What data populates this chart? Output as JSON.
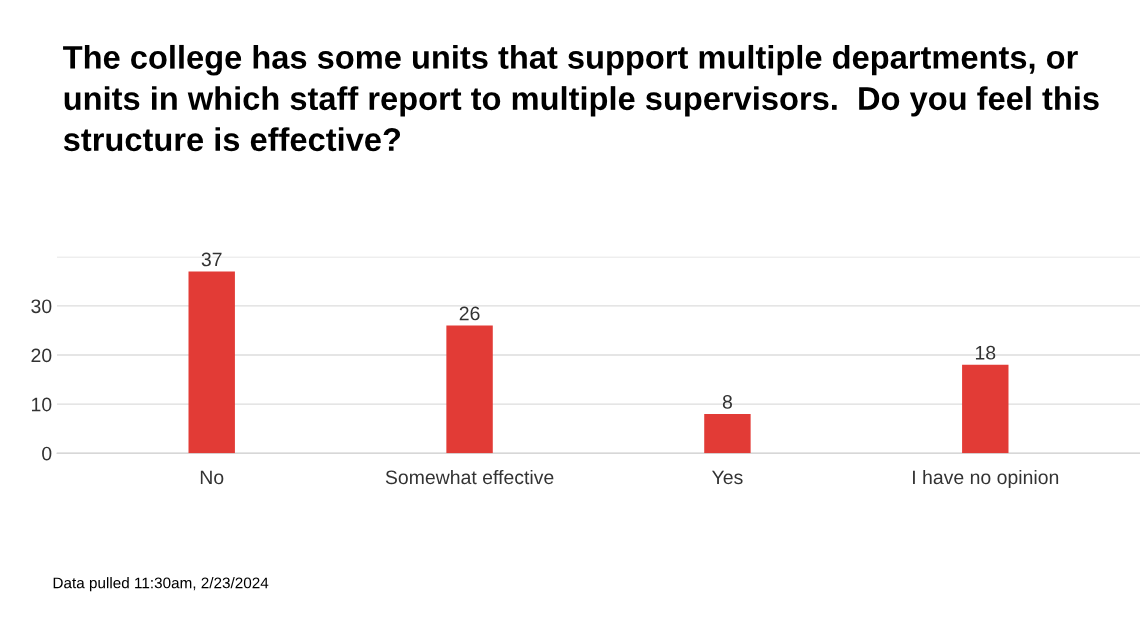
{
  "chart_data": {
    "type": "bar",
    "title": "The college has some units that support multiple departments, or units in which staff report to multiple supervisors.  Do you feel this structure is effective?",
    "categories": [
      "No",
      "Somewhat effective",
      "Yes",
      "I have no opinion"
    ],
    "values": [
      37,
      26,
      8,
      18
    ],
    "color": "#e23b36",
    "ylim": [
      0,
      40
    ],
    "yticks": [
      0,
      10,
      20,
      30,
      {
        "value": 40,
        "label": null
      }
    ],
    "grid": "y",
    "data_labels": true,
    "legend": false,
    "annotations": [
      "Data pulled 11:30am, 2/23/2024"
    ]
  }
}
